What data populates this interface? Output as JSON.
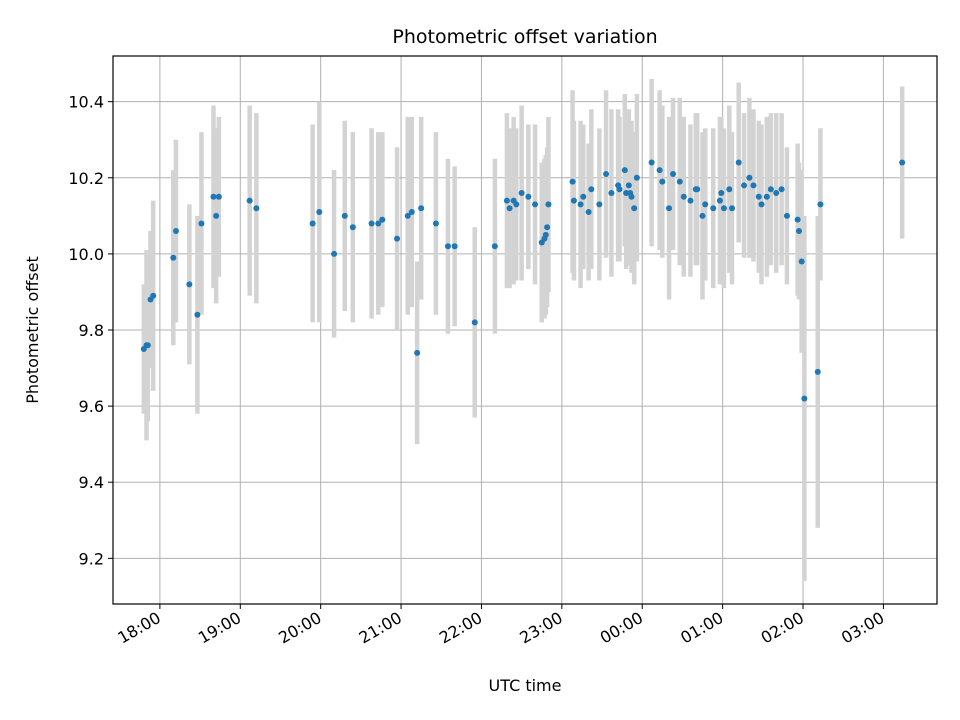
{
  "chart_data": {
    "type": "scatter",
    "title": "Photometric offset variation",
    "xlabel": "UTC time",
    "ylabel": "Photometric offset",
    "xlim": [
      "17:25",
      "03:40"
    ],
    "ylim": [
      9.08,
      10.52
    ],
    "yticks": [
      "9.2",
      "9.4",
      "9.6",
      "9.8",
      "10.0",
      "10.2",
      "10.4"
    ],
    "xticks": [
      "18:00",
      "19:00",
      "20:00",
      "21:00",
      "22:00",
      "23:00",
      "00:00",
      "01:00",
      "02:00",
      "03:00"
    ],
    "grid": true,
    "colors": {
      "points": "#1f77b4",
      "errorbars": "#d3d3d3",
      "grid": "#b0b0b0"
    },
    "series": [
      {
        "x": [
          "17:48",
          "17:50",
          "17:51",
          "17:53",
          "17:55",
          "18:10",
          "18:12",
          "18:22",
          "18:28",
          "18:31",
          "18:40",
          "18:42",
          "18:44",
          "19:07",
          "19:12",
          "19:54",
          "19:59",
          "20:10",
          "20:18",
          "20:24",
          "20:38",
          "20:43",
          "20:46",
          "20:57",
          "21:05",
          "21:08",
          "21:12",
          "21:15",
          "21:26",
          "21:35",
          "21:40",
          "21:55",
          "22:10",
          "22:19",
          "22:21",
          "22:24",
          "22:26",
          "22:30",
          "22:35",
          "22:40",
          "22:45",
          "22:47",
          "22:48",
          "22:49",
          "22:50",
          "23:08",
          "23:09",
          "23:14",
          "23:16",
          "23:20",
          "23:22",
          "23:28",
          "23:33",
          "23:37",
          "23:42",
          "23:43",
          "23:47",
          "23:48",
          "23:50",
          "23:51",
          "23:52",
          "23:54",
          "23:56",
          "00:07",
          "00:13",
          "00:15",
          "00:20",
          "00:23",
          "00:28",
          "00:31",
          "00:36",
          "00:40",
          "00:41",
          "00:45",
          "00:47",
          "00:53",
          "00:58",
          "00:59",
          "01:01",
          "01:05",
          "01:07",
          "01:12",
          "01:16",
          "01:20",
          "01:23",
          "01:27",
          "01:29",
          "01:33",
          "01:36",
          "01:40",
          "01:44",
          "01:48",
          "01:56",
          "01:57",
          "01:59",
          "02:01",
          "02:11",
          "02:13",
          "03:14"
        ],
        "y": [
          9.75,
          9.76,
          9.76,
          9.88,
          9.89,
          9.99,
          10.06,
          9.92,
          9.84,
          10.08,
          10.15,
          10.1,
          10.15,
          10.14,
          10.12,
          10.08,
          10.11,
          10.0,
          10.1,
          10.07,
          10.08,
          10.08,
          10.09,
          10.04,
          10.1,
          10.11,
          9.74,
          10.12,
          10.08,
          10.02,
          10.02,
          9.82,
          10.02,
          10.14,
          10.12,
          10.14,
          10.13,
          10.16,
          10.15,
          10.13,
          10.03,
          10.04,
          10.05,
          10.07,
          10.13,
          10.19,
          10.14,
          10.13,
          10.15,
          10.11,
          10.17,
          10.13,
          10.21,
          10.16,
          10.18,
          10.17,
          10.22,
          10.16,
          10.18,
          10.16,
          10.15,
          10.12,
          10.2,
          10.24,
          10.22,
          10.19,
          10.12,
          10.21,
          10.19,
          10.15,
          10.14,
          10.17,
          10.17,
          10.1,
          10.13,
          10.12,
          10.14,
          10.16,
          10.12,
          10.17,
          10.12,
          10.24,
          10.18,
          10.2,
          10.18,
          10.15,
          10.13,
          10.15,
          10.17,
          10.16,
          10.17,
          10.1,
          10.09,
          10.06,
          9.98,
          9.62,
          9.69,
          10.13,
          10.24
        ],
        "yerr": [
          0.17,
          0.25,
          0.2,
          0.18,
          0.25,
          0.23,
          0.24,
          0.21,
          0.26,
          0.24,
          0.24,
          0.23,
          0.21,
          0.25,
          0.25,
          0.26,
          0.29,
          0.22,
          0.25,
          0.25,
          0.25,
          0.24,
          0.23,
          0.24,
          0.26,
          0.25,
          0.24,
          0.24,
          0.24,
          0.23,
          0.21,
          0.25,
          0.23,
          0.23,
          0.21,
          0.22,
          0.2,
          0.23,
          0.19,
          0.21,
          0.21,
          0.21,
          0.21,
          0.21,
          0.23,
          0.24,
          0.21,
          0.22,
          0.19,
          0.18,
          0.21,
          0.2,
          0.22,
          0.22,
          0.2,
          0.19,
          0.2,
          0.2,
          0.2,
          0.19,
          0.2,
          0.2,
          0.22,
          0.22,
          0.21,
          0.2,
          0.24,
          0.2,
          0.22,
          0.21,
          0.2,
          0.2,
          0.2,
          0.22,
          0.2,
          0.21,
          0.22,
          0.2,
          0.21,
          0.22,
          0.2,
          0.21,
          0.19,
          0.21,
          0.2,
          0.2,
          0.21,
          0.21,
          0.2,
          0.21,
          0.2,
          0.18,
          0.2,
          0.18,
          0.24,
          0.48,
          0.41,
          0.2,
          0.2
        ]
      }
    ]
  }
}
